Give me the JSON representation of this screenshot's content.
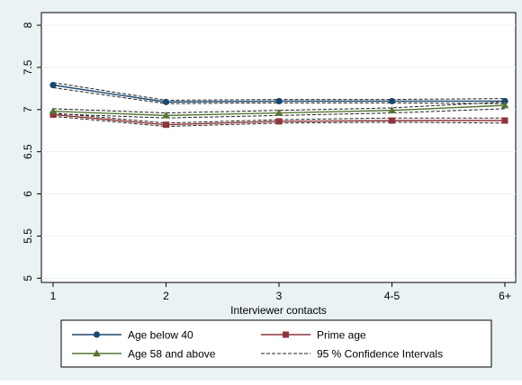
{
  "chart_data": {
    "type": "line",
    "title": "",
    "xlabel": "Interviewer contacts",
    "ylabel": "",
    "categories": [
      "1",
      "2",
      "3",
      "4-5",
      "6+"
    ],
    "ylim": [
      4.95,
      8.15
    ],
    "yticks": [
      5,
      5.5,
      6,
      6.5,
      7,
      7.5,
      8
    ],
    "ytick_labels": [
      "5",
      "5.5",
      "6",
      "6.5",
      "7",
      "7.5",
      "8"
    ],
    "grid": "horizontal",
    "legend_position": "bottom",
    "series": [
      {
        "name": "Age below 40",
        "values": [
          7.29,
          7.09,
          7.1,
          7.1,
          7.1
        ],
        "color": "#1a476f",
        "marker": "circle",
        "ci_lower": [
          7.26,
          7.07,
          7.08,
          7.08,
          7.07
        ],
        "ci_upper": [
          7.32,
          7.11,
          7.12,
          7.12,
          7.13
        ]
      },
      {
        "name": "Prime age",
        "values": [
          6.94,
          6.82,
          6.86,
          6.87,
          6.87
        ],
        "color": "#90353b",
        "marker": "square",
        "ci_lower": [
          6.92,
          6.8,
          6.84,
          6.85,
          6.84
        ],
        "ci_upper": [
          6.96,
          6.84,
          6.88,
          6.9,
          6.9
        ]
      },
      {
        "name": "Age 58 and above",
        "values": [
          6.98,
          6.93,
          6.96,
          6.99,
          7.05
        ],
        "color": "#55752f",
        "marker": "triangle",
        "ci_lower": [
          6.95,
          6.9,
          6.93,
          6.96,
          7.01
        ],
        "ci_upper": [
          7.01,
          6.96,
          6.99,
          7.02,
          7.09
        ]
      }
    ],
    "ci_legend": "95 % Confidence Intervals"
  }
}
